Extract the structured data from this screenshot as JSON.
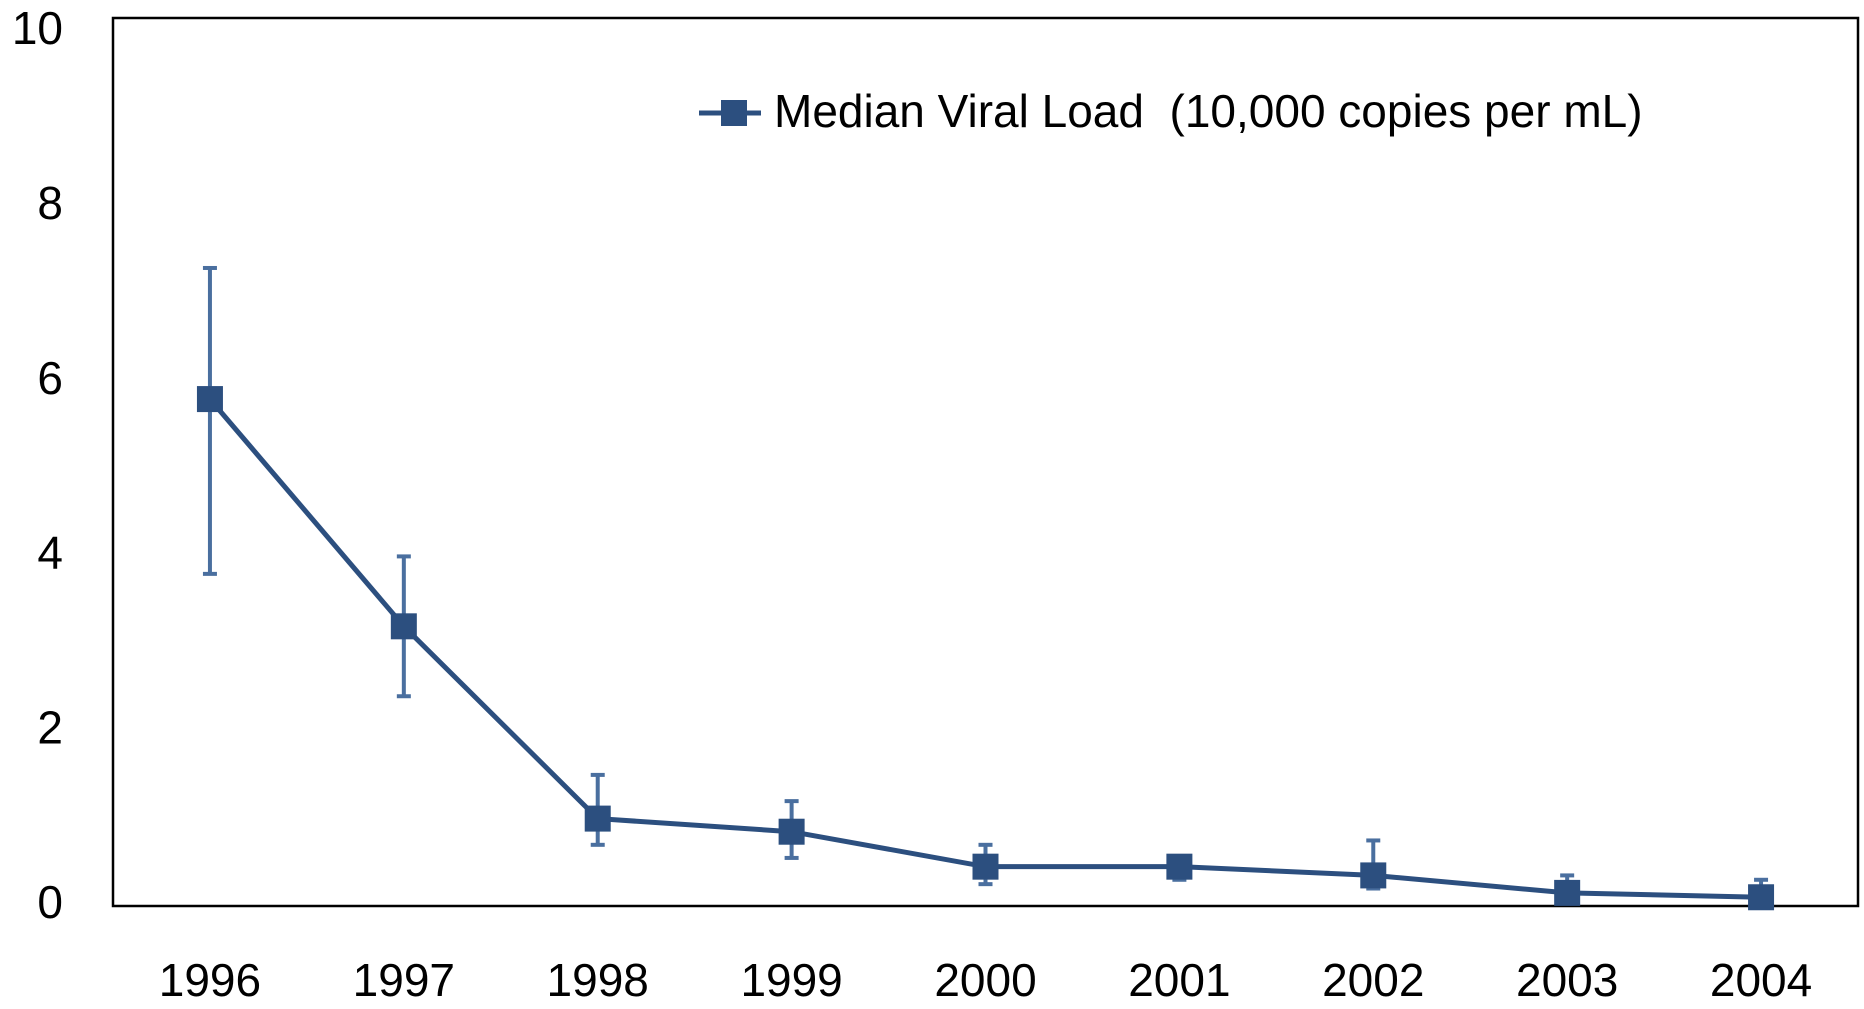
{
  "chart_data": {
    "type": "line",
    "categories": [
      "1996",
      "1997",
      "1998",
      "1999",
      "2000",
      "2001",
      "2002",
      "2003",
      "2004"
    ],
    "series": [
      {
        "name": "Median Viral Load  (10,000 copies per mL)",
        "color": "#2c4f7f",
        "error_color": "#4a6f9f",
        "values": [
          5.8,
          3.2,
          1.0,
          0.85,
          0.45,
          0.45,
          0.35,
          0.15,
          0.1
        ],
        "err_plus": [
          1.5,
          0.8,
          0.5,
          0.35,
          0.25,
          0.12,
          0.4,
          0.2,
          0.2
        ],
        "err_minus": [
          2.0,
          0.8,
          0.3,
          0.3,
          0.2,
          0.15,
          0.15,
          0.1,
          0.08
        ]
      }
    ],
    "ylim": [
      0,
      10
    ],
    "yticks": [
      0,
      2,
      4,
      6,
      8,
      10
    ],
    "grid": false,
    "legend": "top-right"
  }
}
